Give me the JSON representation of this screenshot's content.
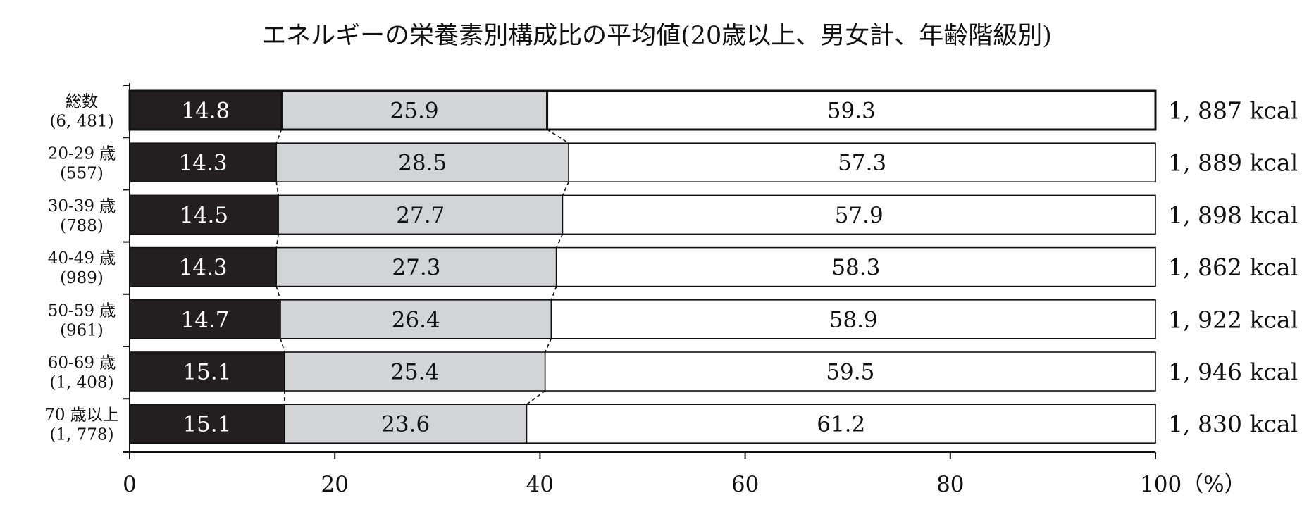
{
  "chart_data": {
    "type": "bar",
    "orientation": "horizontal",
    "stacked": true,
    "title": "エネルギーの栄養素別構成比の平均値(20歳以上、男女計、年齢階級別)",
    "categories": [
      {
        "label": "総数",
        "n": "(6, 481)"
      },
      {
        "label": "20-29 歳",
        "n": "(557)"
      },
      {
        "label": "30-39 歳",
        "n": "(788)"
      },
      {
        "label": "40-49 歳",
        "n": "(989)"
      },
      {
        "label": "50-59 歳",
        "n": "(961)"
      },
      {
        "label": "60-69 歳",
        "n": "(1, 408)"
      },
      {
        "label": "70 歳以上",
        "n": "(1, 778)"
      }
    ],
    "series": [
      {
        "values": [
          14.8,
          14.3,
          14.5,
          14.3,
          14.7,
          15.1,
          15.1
        ],
        "labels": [
          "14.8",
          "14.3",
          "14.5",
          "14.3",
          "14.7",
          "15.1",
          "15.1"
        ],
        "color": "#231f20",
        "text_color": "#ffffff"
      },
      {
        "values": [
          25.9,
          28.5,
          27.7,
          27.3,
          26.4,
          25.4,
          23.6
        ],
        "labels": [
          "25.9",
          "28.5",
          "27.7",
          "27.3",
          "26.4",
          "25.4",
          "23.6"
        ],
        "color": "#d3d4d6",
        "text_color": "#111111"
      },
      {
        "values": [
          59.3,
          57.3,
          57.9,
          58.3,
          58.9,
          59.5,
          61.2
        ],
        "labels": [
          "59.3",
          "57.3",
          "57.9",
          "58.3",
          "58.9",
          "59.5",
          "61.2"
        ],
        "color": "#ffffff",
        "text_color": "#111111"
      }
    ],
    "right_labels": [
      "1, 887 kcal",
      "1, 889 kcal",
      "1, 898 kcal",
      "1, 862 kcal",
      "1, 922 kcal",
      "1, 946 kcal",
      "1, 830 kcal"
    ],
    "xlim": [
      0,
      100
    ],
    "xticks": [
      {
        "value": 0,
        "label": "0"
      },
      {
        "value": 20,
        "label": "20"
      },
      {
        "value": 40,
        "label": "40"
      },
      {
        "value": 60,
        "label": "60"
      },
      {
        "value": 80,
        "label": "80"
      },
      {
        "value": 100,
        "label": "100（%）"
      }
    ],
    "grid": false,
    "legend": "none"
  }
}
